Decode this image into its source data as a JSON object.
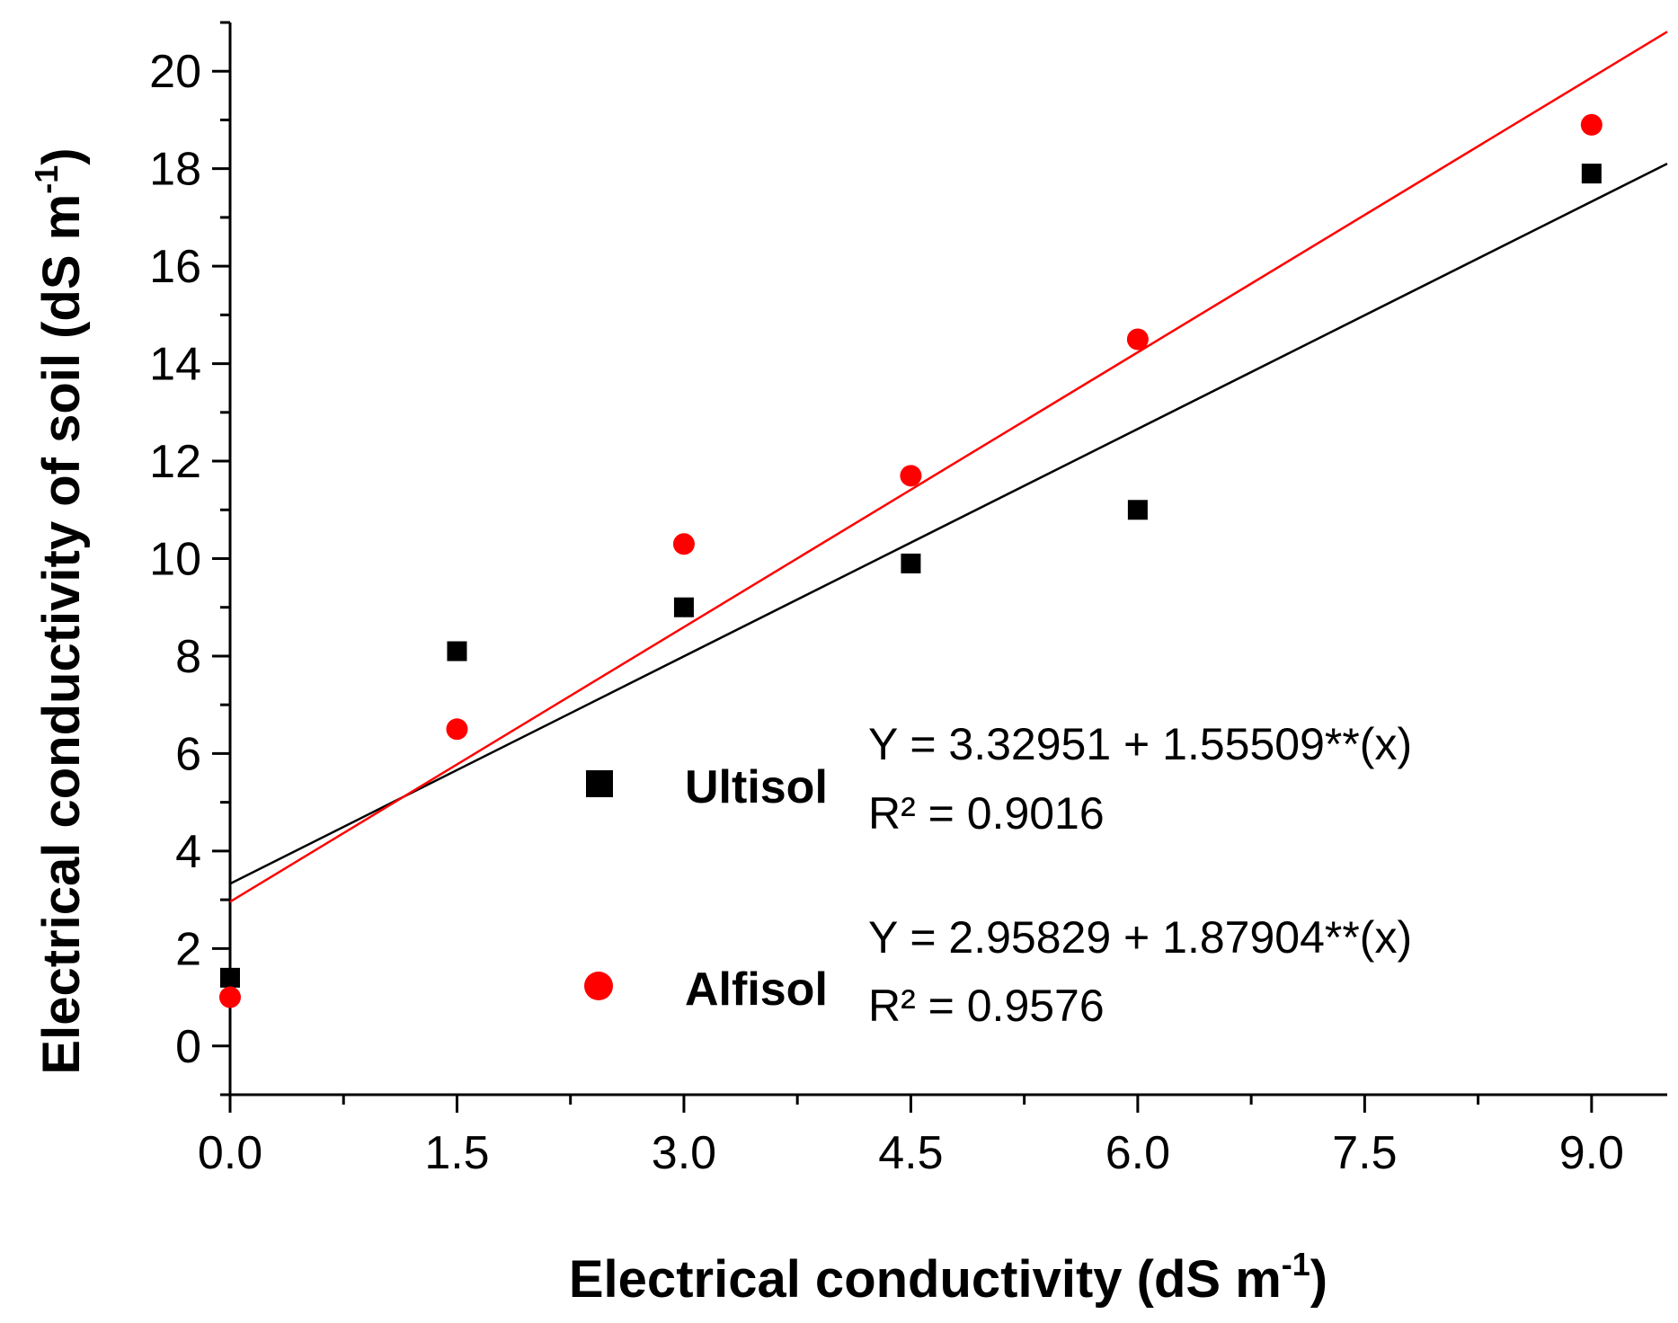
{
  "chart_data": {
    "type": "scatter",
    "title": "",
    "xlabel": "Electrical conductivity (dS m",
    "xlabel_sup": "-1",
    "xlabel_end": ")",
    "ylabel": "Electrical conductivity of soil (dS m",
    "ylabel_sup": "-1",
    "ylabel_end": ")",
    "xlim": [
      0,
      9.5
    ],
    "ylim": [
      -1,
      21
    ],
    "x_ticks": [
      "0.0",
      "1.5",
      "3.0",
      "4.5",
      "6.0",
      "7.5",
      "9.0"
    ],
    "y_ticks": [
      "0",
      "2",
      "4",
      "6",
      "8",
      "10",
      "12",
      "14",
      "16",
      "18",
      "20"
    ],
    "grid": false,
    "legend_position": "center-right",
    "series": [
      {
        "name": "Ultisol",
        "marker": "square",
        "color": "#000000",
        "x": [
          0,
          1.5,
          3.0,
          4.5,
          6.0,
          9.0
        ],
        "y": [
          1.4,
          8.1,
          9.0,
          9.9,
          11.0,
          17.9
        ],
        "fit": {
          "intercept": 3.32951,
          "slope": 1.55509
        },
        "equation": "Y = 3.32951 + 1.55509**(x)",
        "r2": "R² = 0.9016"
      },
      {
        "name": "Alfisol",
        "marker": "circle",
        "color": "#ff0000",
        "x": [
          0,
          1.5,
          3.0,
          4.5,
          6.0,
          9.0
        ],
        "y": [
          1.0,
          6.5,
          10.3,
          11.7,
          14.5,
          18.9
        ],
        "fit": {
          "intercept": 2.95829,
          "slope": 1.87904
        },
        "equation": "Y = 2.95829 + 1.87904**(x)",
        "r2": "R² = 0.9576"
      }
    ]
  }
}
